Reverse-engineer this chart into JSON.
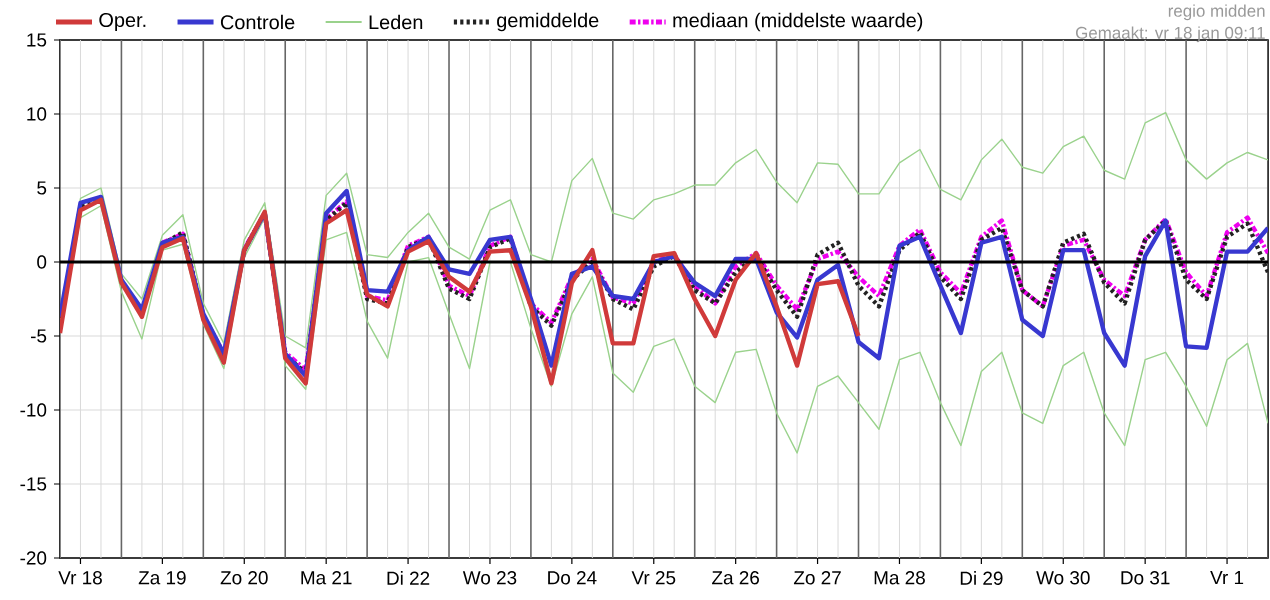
{
  "chart_data": {
    "type": "line",
    "annotations": [
      "regio midden",
      "Gemaakt: vr 18 jan 09:11"
    ],
    "categories": [
      null,
      "Vr 18",
      null,
      null,
      null,
      "Za 19",
      null,
      null,
      null,
      "Zo 20",
      null,
      null,
      null,
      "Ma 21",
      null,
      null,
      null,
      "Di 22",
      null,
      null,
      null,
      "Wo 23",
      null,
      null,
      null,
      "Do 24",
      null,
      null,
      null,
      "Vr 25",
      null,
      null,
      null,
      "Za 26",
      null,
      null,
      null,
      "Zo 27",
      null,
      null,
      null,
      "Ma 28",
      null,
      null,
      null,
      "Di 29",
      null,
      null,
      null,
      "Wo 30",
      null,
      null,
      null,
      "Do 31",
      null,
      null,
      null,
      "Vr 1",
      null,
      null
    ],
    "ylim": [
      -20,
      15
    ],
    "yticks": [
      -20,
      -15,
      -10,
      -5,
      0,
      5,
      10,
      15
    ],
    "grid": true,
    "legend": "top",
    "ref_lines": [
      {
        "axis": "y",
        "value": 0,
        "color": "#000000"
      }
    ],
    "series": [
      {
        "name": "Oper.",
        "color": "#d03a3a",
        "line_style": "solid",
        "values": [
          -4.8,
          3.5,
          4.2,
          -1.4,
          -3.7,
          1.0,
          1.6,
          -3.9,
          -6.8,
          0.8,
          3.4,
          -6.5,
          -8.2,
          2.6,
          3.5,
          -2.2,
          -3.0,
          0.7,
          1.4,
          -1.0,
          -2.0,
          0.7,
          0.8,
          -3.0,
          -8.2,
          -1.4,
          0.8,
          -5.5,
          -5.5,
          0.4,
          0.6,
          -2.5,
          -5.0,
          -1.2,
          0.6,
          -3.0,
          -7.0,
          -1.5,
          -1.3,
          -5.0,
          null,
          null,
          null,
          null,
          null,
          null,
          null,
          null,
          null,
          null,
          null,
          null,
          null,
          null,
          null,
          null,
          null,
          null,
          null,
          null
        ]
      },
      {
        "name": "Controle",
        "color": "#3838d0",
        "line_style": "solid",
        "values": [
          -3.7,
          4.0,
          4.4,
          -1.2,
          -3.2,
          1.3,
          1.7,
          -3.5,
          -6.2,
          0.8,
          3.3,
          -6.2,
          -7.7,
          3.3,
          4.8,
          -1.9,
          -2.0,
          0.8,
          1.7,
          -0.5,
          -0.8,
          1.5,
          1.7,
          -2.5,
          -7.0,
          -0.8,
          -0.3,
          -2.3,
          -2.5,
          0,
          0.4,
          -1.4,
          -2.3,
          0.2,
          0.2,
          -3.4,
          -5.1,
          -1.2,
          -0.2,
          -5.4,
          -6.5,
          1.1,
          1.7,
          -1.6,
          -4.8,
          1.3,
          1.7,
          -3.9,
          -5.0,
          0.8,
          0.8,
          -4.8,
          -7.0,
          0.4,
          2.8,
          -5.7,
          -5.8,
          0.7,
          0.7,
          2.3
        ]
      },
      {
        "name": "Leden",
        "color": "#9ad28c",
        "line_style": "solid",
        "values": [
          -3.5,
          4.3,
          5.0,
          -0.8,
          -2.5,
          1.8,
          3.2,
          -2.8,
          -5.5,
          1.5,
          4.0,
          -5.0,
          -5.8,
          4.5,
          6.0,
          0.5,
          0.3,
          2.0,
          3.3,
          1.0,
          0.2,
          3.5,
          4.2,
          0.5,
          0.0,
          5.5,
          7.0,
          3.3,
          2.9,
          4.2,
          4.6,
          5.2,
          5.2,
          6.7,
          7.6,
          5.4,
          4.0,
          6.7,
          6.6,
          4.6,
          4.6,
          6.7,
          7.6,
          4.9,
          4.2,
          6.9,
          8.3,
          6.4,
          6.0,
          7.8,
          8.5,
          6.2,
          5.6,
          9.4,
          10.1,
          6.9,
          5.6,
          6.7,
          7.4,
          6.9
        ]
      },
      {
        "color": "#9ad28c",
        "line_style": "solid",
        "values": [
          -4.8,
          3.0,
          3.8,
          -2.0,
          -5.2,
          0.8,
          1.2,
          -4.2,
          -7.2,
          0.3,
          3.0,
          -7.0,
          -8.6,
          1.5,
          2.0,
          -4.0,
          -6.5,
          0.0,
          0.3,
          -3.5,
          -7.2,
          0.0,
          0.0,
          -4.5,
          -8.4,
          -3.5,
          -1.0,
          -7.5,
          -8.8,
          -5.7,
          -5.2,
          -8.4,
          -9.5,
          -6.1,
          -5.9,
          -10.2,
          -12.9,
          -8.4,
          -7.7,
          -9.5,
          -11.3,
          -6.6,
          -6.1,
          -9.5,
          -12.4,
          -7.4,
          -6.1,
          -10.2,
          -10.9,
          -7.0,
          -6.1,
          -10.2,
          -12.4,
          -6.6,
          -6.1,
          -8.4,
          -11.1,
          -6.6,
          -5.5,
          -10.9
        ]
      },
      {
        "name": "gemiddelde",
        "color": "#222222",
        "line_style": "dotted",
        "values": [
          -4.2,
          3.8,
          4.3,
          -1.3,
          -3.5,
          1.2,
          2.0,
          -3.7,
          -6.3,
          0.8,
          3.3,
          -6.3,
          -7.5,
          2.8,
          4.0,
          -2.5,
          -2.8,
          1.0,
          1.6,
          -1.8,
          -2.5,
          1.0,
          1.6,
          -3.0,
          -4.3,
          -1.2,
          0.0,
          -2.5,
          -3.2,
          -0.3,
          0.4,
          -1.9,
          -2.8,
          -0.7,
          0.4,
          -1.9,
          -3.7,
          0.5,
          1.3,
          -1.6,
          -3.0,
          0.8,
          2.0,
          -1.0,
          -2.5,
          1.5,
          2.3,
          -1.9,
          -3.0,
          1.3,
          1.9,
          -1.4,
          -2.8,
          1.5,
          2.8,
          -1.2,
          -2.5,
          1.7,
          2.6,
          -0.7
        ]
      },
      {
        "name": "mediaan (middelste waarde)",
        "color": "#ee00ee",
        "line_style": "dashed",
        "values": [
          null,
          null,
          null,
          null,
          null,
          1.3,
          1.9,
          -3.6,
          -6.2,
          0.9,
          3.3,
          -6.1,
          -7.3,
          2.9,
          4.1,
          -2.3,
          -2.6,
          1.1,
          1.7,
          -1.6,
          -2.3,
          1.1,
          1.7,
          -2.8,
          -4.1,
          -1.0,
          0.2,
          -2.4,
          -2.8,
          0,
          0.5,
          -1.6,
          -2.8,
          -0.3,
          0.6,
          -1.6,
          -3.2,
          0.2,
          0.7,
          -1.0,
          -2.3,
          1.1,
          2.2,
          -0.7,
          -2.1,
          1.7,
          2.8,
          -1.9,
          -3.0,
          1.1,
          1.5,
          -1.2,
          -2.3,
          1.5,
          2.9,
          -0.7,
          -2.3,
          2.0,
          3.0,
          0.6
        ]
      }
    ]
  }
}
